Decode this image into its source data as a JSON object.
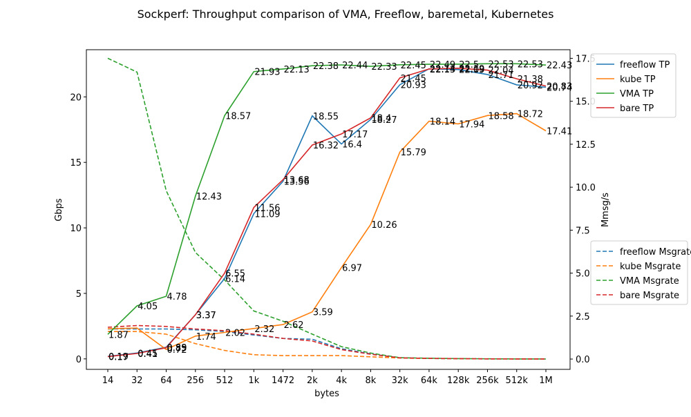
{
  "chart_data": {
    "type": "line",
    "title": "Sockperf: Throughput comparison of VMA, Freeflow, baremetal, Kubernetes",
    "xlabel": "bytes",
    "ylabel": "Gbps",
    "ylabel_right": "Mmsg/s",
    "categories": [
      "14",
      "32",
      "64",
      "256",
      "512",
      "1k",
      "1472",
      "2k",
      "4k",
      "8k",
      "32k",
      "64k",
      "128k",
      "256k",
      "512k",
      "1M"
    ],
    "ylim": [
      -0.8,
      23.6
    ],
    "ylim_right": [
      -0.6,
      18.0
    ],
    "yticks": [
      0,
      5,
      10,
      15,
      20
    ],
    "yticks_right": [
      0.0,
      2.5,
      5.0,
      7.5,
      10.0,
      12.5,
      15.0,
      17.5
    ],
    "yticks_right_labels": [
      "0.0",
      "2.5",
      "5.0",
      "7.5",
      "10.0",
      "12.5",
      "15.0",
      "17.5"
    ],
    "colors": {
      "freeflow": "#1f77b4",
      "kube": "#ff7f0e",
      "vma": "#2ca02c",
      "bare": "#d62728"
    },
    "series": [
      {
        "name": "freeflow TP",
        "key": "freeflow",
        "axis": "left",
        "style": "solid",
        "values": [
          0.19,
          0.45,
          0.89,
          3.37,
          6.14,
          11.09,
          13.56,
          18.55,
          16.4,
          18.27,
          20.93,
          22.14,
          22.09,
          21.71,
          20.92,
          20.74
        ],
        "labels": [
          "0.19",
          "0.45",
          "0.89",
          "3.37",
          "6.14",
          "11.09",
          "13.56",
          "18.55",
          "16.4",
          "18.27",
          "20.93",
          "22.14",
          "22.09",
          "21.71",
          "20.92",
          "20.74"
        ]
      },
      {
        "name": "kube TP",
        "key": "kube",
        "axis": "left",
        "style": "solid",
        "values": [
          2.3,
          2.35,
          0.72,
          1.74,
          2.02,
          2.32,
          2.62,
          3.59,
          6.97,
          10.26,
          15.79,
          18.14,
          17.94,
          18.58,
          18.72,
          17.41
        ],
        "labels": [
          "",
          "",
          "0.72",
          "1.74",
          "2.02",
          "2.32",
          "2.62",
          "3.59",
          "6.97",
          "10.26",
          "15.79",
          "18.14",
          "17.94",
          "18.58",
          "18.72",
          "17.41"
        ]
      },
      {
        "name": "VMA TP",
        "key": "vma",
        "axis": "left",
        "style": "solid",
        "values": [
          1.87,
          4.05,
          4.78,
          12.43,
          18.57,
          21.93,
          22.13,
          22.38,
          22.44,
          22.33,
          22.45,
          22.49,
          22.5,
          22.53,
          22.53,
          22.43
        ],
        "labels": [
          "1.87",
          "4.05",
          "4.78",
          "12.43",
          "18.57",
          "21.93",
          "22.13",
          "22.38",
          "22.44",
          "22.33",
          "22.45",
          "22.49",
          "22.5",
          "22.53",
          "22.53",
          "22.43"
        ]
      },
      {
        "name": "bare TP",
        "key": "bare",
        "axis": "left",
        "style": "solid",
        "values": [
          0.17,
          0.41,
          0.85,
          3.37,
          6.55,
          11.56,
          13.68,
          16.32,
          17.17,
          18.4,
          21.45,
          22.13,
          22.19,
          22.04,
          21.38,
          20.83
        ],
        "labels": [
          "0.17",
          "0.41",
          "0.85",
          "3.37",
          "6.55",
          "11.56",
          "13.68",
          "16.32",
          "17.17",
          "18.4",
          "21.45",
          "22.13",
          "22.19",
          "22.04",
          "21.38",
          "20.83"
        ]
      },
      {
        "name": "freeflow Msgrate",
        "key": "freeflow",
        "axis": "right",
        "style": "dashed",
        "values": [
          1.75,
          1.75,
          1.75,
          1.7,
          1.6,
          1.4,
          1.2,
          1.15,
          0.6,
          0.3,
          0.07,
          0.04,
          0.02,
          0.01,
          0.01,
          0.005
        ]
      },
      {
        "name": "kube Msgrate",
        "key": "kube",
        "axis": "right",
        "style": "dashed",
        "values": [
          1.6,
          1.6,
          1.45,
          0.9,
          0.5,
          0.25,
          0.2,
          0.2,
          0.2,
          0.13,
          0.06,
          0.035,
          0.02,
          0.01,
          0.005,
          0.002
        ]
      },
      {
        "name": "VMA Msgrate",
        "key": "vma",
        "axis": "right",
        "style": "dashed",
        "values": [
          17.5,
          16.7,
          9.8,
          6.2,
          4.6,
          2.8,
          2.2,
          1.45,
          0.72,
          0.35,
          0.08,
          0.045,
          0.025,
          0.015,
          0.008,
          0.004
        ]
      },
      {
        "name": "bare Msgrate",
        "key": "bare",
        "axis": "right",
        "style": "dashed",
        "values": [
          1.85,
          1.95,
          1.9,
          1.75,
          1.65,
          1.45,
          1.2,
          1.05,
          0.55,
          0.28,
          0.07,
          0.04,
          0.025,
          0.012,
          0.008,
          0.004
        ]
      }
    ],
    "legend_tp": [
      "freeflow TP",
      "kube TP",
      "VMA TP",
      "bare TP"
    ],
    "legend_msg": [
      "freeflow Msgrate",
      "kube Msgrate",
      "VMA Msgrate",
      "bare Msgrate"
    ],
    "legend_placement": "right, outside plot (two groups)",
    "grid": false
  }
}
